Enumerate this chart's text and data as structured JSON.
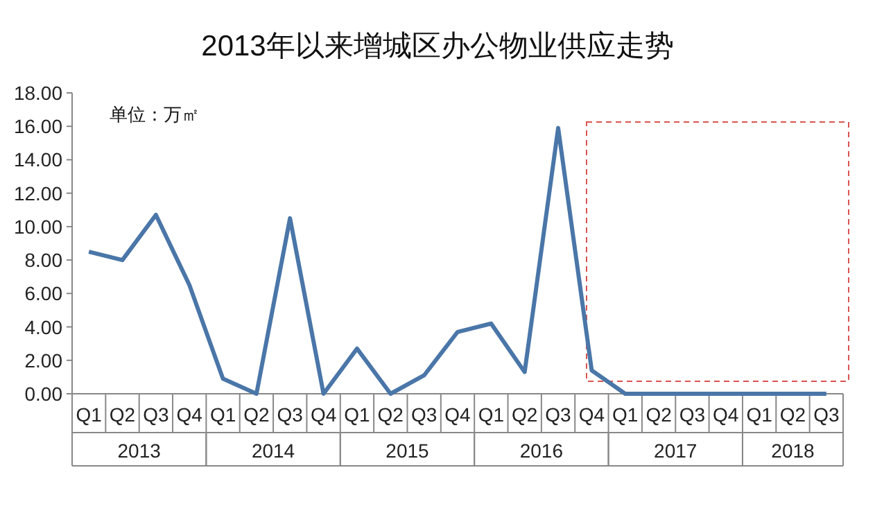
{
  "chart_data": {
    "type": "line",
    "title": "2013年以来增城区办公物业供应走势",
    "categories": [
      "Q1",
      "Q2",
      "Q3",
      "Q4",
      "Q1",
      "Q2",
      "Q3",
      "Q4",
      "Q1",
      "Q2",
      "Q3",
      "Q4",
      "Q1",
      "Q2",
      "Q3",
      "Q4",
      "Q1",
      "Q2",
      "Q3",
      "Q4",
      "Q1",
      "Q2",
      "Q3"
    ],
    "series": [
      {
        "color": "#4a76a8",
        "values": [
          8.5,
          8.0,
          10.7,
          6.5,
          0.9,
          0.0,
          10.5,
          0.0,
          2.7,
          0.0,
          1.1,
          3.7,
          4.2,
          1.3,
          15.9,
          1.4,
          0,
          0,
          0,
          0,
          0,
          0,
          0
        ]
      }
    ],
    "ylim": [
      0,
      18
    ],
    "yticks": [
      {
        "value": 0,
        "label": "0.00"
      },
      {
        "value": 2,
        "label": "2.00"
      },
      {
        "value": 4,
        "label": "4.00"
      },
      {
        "value": 6,
        "label": "6.00"
      },
      {
        "value": 8,
        "label": "8.00"
      },
      {
        "value": 10,
        "label": "10.00"
      },
      {
        "value": 12,
        "label": "12.00"
      },
      {
        "value": 14,
        "label": "14.00"
      },
      {
        "value": 16,
        "label": "16.00"
      },
      {
        "value": 18,
        "label": "18.00"
      }
    ],
    "annotations": [
      "单位：万㎡",
      "2013",
      "2014",
      "2015",
      "2016",
      "2017",
      "2018"
    ],
    "grid": false,
    "marker": "none",
    "line_style": "solid"
  }
}
